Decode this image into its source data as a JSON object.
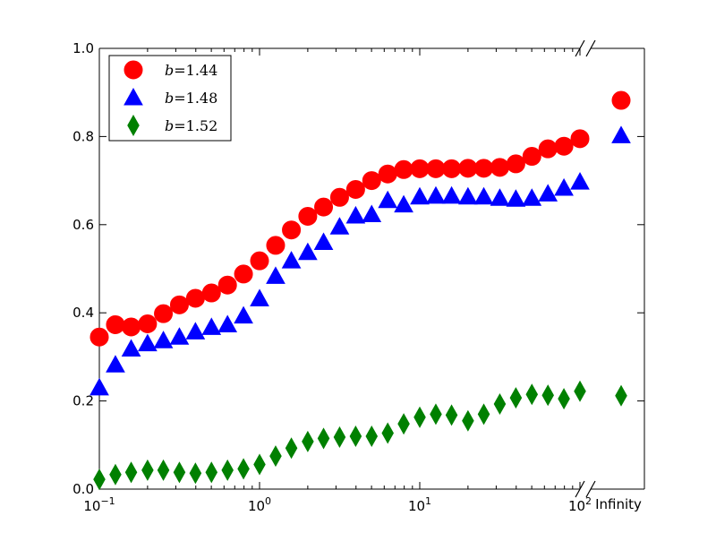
{
  "chart_data": {
    "type": "scatter",
    "x_scale": "log",
    "xlim": [
      0.1,
      100
    ],
    "ylim": [
      0.0,
      1.0
    ],
    "broken_axis_label": "Infinity",
    "x_ticks": [
      {
        "value": 0.1,
        "base": "10",
        "exp": "−1"
      },
      {
        "value": 1,
        "base": "10",
        "exp": "0"
      },
      {
        "value": 10,
        "base": "10",
        "exp": "1"
      },
      {
        "value": 100,
        "base": "10",
        "exp": "2"
      }
    ],
    "y_ticks": [
      "0.0",
      "0.2",
      "0.4",
      "0.6",
      "0.8",
      "1.0"
    ],
    "x": [
      0.1,
      0.126,
      0.158,
      0.2,
      0.251,
      0.316,
      0.398,
      0.501,
      0.631,
      0.794,
      1.0,
      1.26,
      1.58,
      2.0,
      2.51,
      3.16,
      3.98,
      5.01,
      6.31,
      7.94,
      10.0,
      12.6,
      15.8,
      20.0,
      25.1,
      31.6,
      39.8,
      50.1,
      63.1,
      79.4,
      100
    ],
    "series": [
      {
        "legend": {
          "var": "b",
          "eq": "=",
          "num": "1.44"
        },
        "color": "#ff0000",
        "marker": "circle",
        "values": [
          0.345,
          0.373,
          0.368,
          0.375,
          0.398,
          0.418,
          0.433,
          0.445,
          0.463,
          0.488,
          0.518,
          0.553,
          0.588,
          0.619,
          0.64,
          0.662,
          0.68,
          0.7,
          0.715,
          0.725,
          0.727,
          0.727,
          0.727,
          0.728,
          0.728,
          0.73,
          0.738,
          0.755,
          0.772,
          0.778,
          0.795
        ],
        "infinity_value": 0.882
      },
      {
        "legend": {
          "var": "b",
          "eq": "=",
          "num": "1.48"
        },
        "color": "#0000ff",
        "marker": "triangle",
        "values": [
          0.23,
          0.282,
          0.318,
          0.33,
          0.337,
          0.345,
          0.357,
          0.367,
          0.373,
          0.393,
          0.432,
          0.483,
          0.518,
          0.537,
          0.56,
          0.595,
          0.62,
          0.623,
          0.655,
          0.645,
          0.663,
          0.665,
          0.665,
          0.663,
          0.663,
          0.66,
          0.658,
          0.66,
          0.67,
          0.683,
          0.697
        ],
        "infinity_value": 0.802
      },
      {
        "legend": {
          "var": "b",
          "eq": "=",
          "num": "1.52"
        },
        "color": "#008000",
        "marker": "diamond",
        "values": [
          0.022,
          0.033,
          0.038,
          0.043,
          0.043,
          0.038,
          0.036,
          0.038,
          0.043,
          0.046,
          0.056,
          0.075,
          0.093,
          0.108,
          0.115,
          0.118,
          0.12,
          0.12,
          0.127,
          0.148,
          0.163,
          0.17,
          0.168,
          0.155,
          0.17,
          0.193,
          0.207,
          0.215,
          0.213,
          0.205,
          0.222
        ],
        "infinity_value": 0.212
      }
    ]
  }
}
